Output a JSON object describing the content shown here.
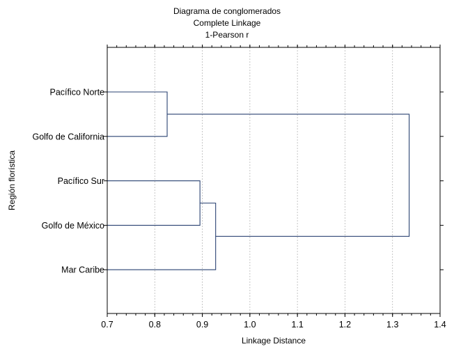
{
  "chart_data": {
    "type": "dendrogram",
    "title": [
      "Diagrama de conglomerados",
      "Complete Linkage",
      "1-Pearson r"
    ],
    "xlabel": "Linkage Distance",
    "ylabel": "Región florística",
    "xlim": [
      0.7,
      1.4
    ],
    "xticks": [
      "0.7",
      "0.8",
      "0.9",
      "1.0",
      "1.1",
      "1.2",
      "1.3",
      "1.4"
    ],
    "xtick_values": [
      0.7,
      0.8,
      0.9,
      1.0,
      1.1,
      1.2,
      1.3,
      1.4
    ],
    "grid": true,
    "line_color": "#2a4272",
    "leaves": [
      "Pacífico Norte",
      "Golfo de California",
      "Pacífico Sur",
      "Golfo de México",
      "Mar Caribe"
    ],
    "merges": [
      {
        "a": 0,
        "b": 1,
        "distance": 0.826
      },
      {
        "a": 2,
        "b": 3,
        "distance": 0.895
      },
      {
        "a": 6,
        "b": 4,
        "distance": 0.928
      },
      {
        "a": 5,
        "b": 7,
        "distance": 1.335
      }
    ]
  }
}
